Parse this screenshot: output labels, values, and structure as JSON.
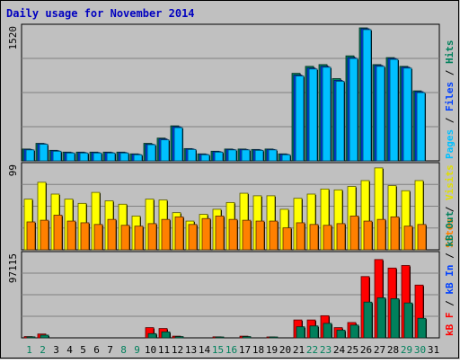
{
  "chart_data": {
    "type": "bar",
    "title": "Daily usage for November 2014",
    "categories": [
      "1",
      "2",
      "3",
      "4",
      "5",
      "6",
      "7",
      "8",
      "9",
      "10",
      "11",
      "12",
      "13",
      "14",
      "15",
      "16",
      "17",
      "18",
      "19",
      "20",
      "21",
      "22",
      "23",
      "24",
      "25",
      "26",
      "27",
      "28",
      "29",
      "30",
      "31"
    ],
    "weekend_days": [
      "1",
      "2",
      "8",
      "9",
      "15",
      "16",
      "22",
      "23",
      "29",
      "30"
    ],
    "panels": [
      {
        "id": "hits-files-pages",
        "max_label": "1520",
        "ymax": 1520,
        "right_labels": [
          {
            "text": "Pages",
            "color": "#00c0ff"
          },
          {
            "text": "Files",
            "color": "#0040ff"
          },
          {
            "text": "Hits",
            "color": "#00805c"
          }
        ],
        "separator": " / ",
        "series": [
          {
            "name": "Hits",
            "color": "#00805c",
            "values": [
              135,
              200,
              120,
              100,
              100,
              100,
              100,
              100,
              80,
              200,
              260,
              400,
              140,
              80,
              110,
              135,
              135,
              130,
              135,
              80,
              1000,
              1080,
              1100,
              940,
              1200,
              1520,
              1100,
              1180,
              1080,
              800,
              0
            ]
          },
          {
            "name": "Files",
            "color": "#0040ff",
            "values": [
              130,
              195,
              115,
              95,
              95,
              95,
              95,
              95,
              75,
              190,
              250,
              390,
              135,
              75,
              105,
              130,
              130,
              125,
              130,
              75,
              980,
              1060,
              1080,
              920,
              1180,
              1510,
              1090,
              1170,
              1070,
              790,
              0
            ]
          },
          {
            "name": "Pages",
            "color": "#00c0ff",
            "values": [
              125,
              190,
              110,
              90,
              90,
              90,
              90,
              90,
              70,
              185,
              240,
              380,
              130,
              70,
              100,
              125,
              125,
              120,
              125,
              70,
              970,
              1050,
              1070,
              910,
              1170,
              1500,
              1080,
              1160,
              1060,
              780,
              0
            ]
          }
        ]
      },
      {
        "id": "visits-sites",
        "max_label": "99",
        "ymax": 99,
        "right_labels": [
          {
            "text": "Sites",
            "color": "#ff8000"
          },
          {
            "text": "Visits",
            "color": "#e0e000"
          }
        ],
        "separator": " / ",
        "series": [
          {
            "name": "Visits",
            "color": "#ffff00",
            "values": [
              60,
              80,
              66,
              60,
              55,
              68,
              58,
              54,
              40,
              60,
              59,
              44,
              34,
              42,
              48,
              56,
              67,
              64,
              64,
              48,
              61,
              66,
              72,
              71,
              75,
              82,
              97,
              76,
              70,
              82,
              0
            ]
          },
          {
            "name": "Sites",
            "color": "#ff8000",
            "values": [
              33,
              35,
              41,
              34,
              32,
              30,
              36,
              29,
              28,
              31,
              36,
              39,
              30,
              37,
              40,
              36,
              35,
              34,
              34,
              26,
              32,
              30,
              29,
              31,
              40,
              34,
              36,
              39,
              28,
              30,
              0
            ]
          }
        ]
      },
      {
        "id": "kbf-kbin-kbout",
        "max_label": "97115",
        "ymax": 97115,
        "right_labels": [
          {
            "text": "kB F",
            "color": "#ff0000"
          },
          {
            "text": "kB In",
            "color": "#0040ff"
          },
          {
            "text": "kB Out",
            "color": "#00805c"
          }
        ],
        "separator": " / ",
        "series": [
          {
            "name": "kB F",
            "color": "#ff0000",
            "values": [
              1500,
              4500,
              0,
              0,
              0,
              0,
              0,
              0,
              0,
              12000,
              11000,
              2000,
              0,
              0,
              1200,
              0,
              2000,
              0,
              1000,
              0,
              21000,
              21000,
              26000,
              12000,
              18000,
              72000,
              92000,
              82000,
              85000,
              62000,
              0
            ]
          },
          {
            "name": "kB Out",
            "color": "#00805c",
            "values": [
              1200,
              3200,
              0,
              0,
              0,
              0,
              0,
              0,
              0,
              5000,
              7000,
              1500,
              0,
              0,
              800,
              0,
              1500,
              0,
              800,
              0,
              13000,
              14000,
              17000,
              9000,
              15000,
              42000,
              47000,
              46000,
              41000,
              23000,
              0
            ]
          }
        ]
      }
    ]
  }
}
